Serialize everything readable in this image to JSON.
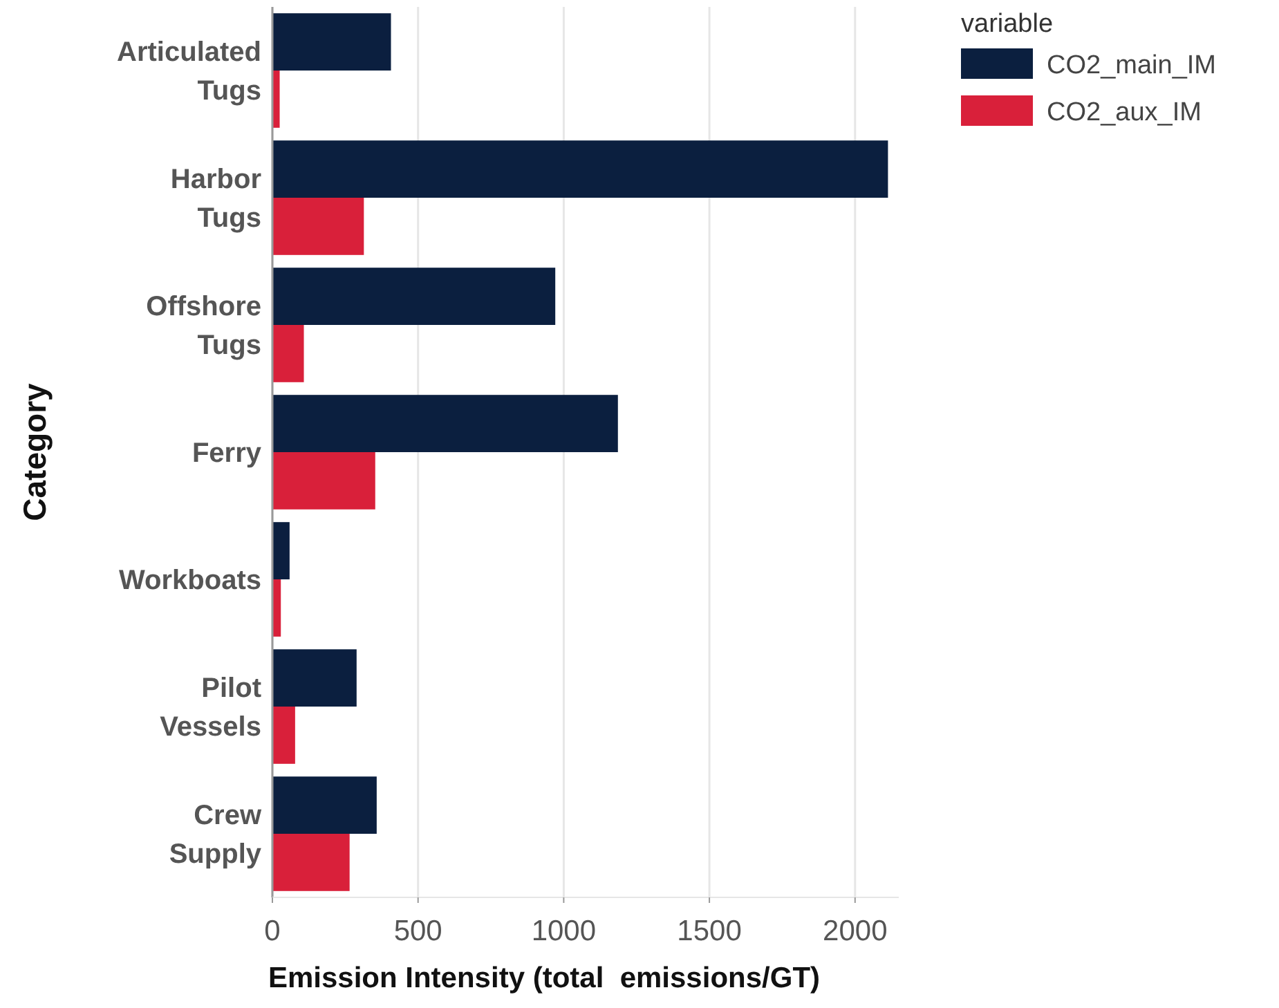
{
  "chart_data": {
    "type": "bar",
    "orientation": "horizontal",
    "xlabel": "Emission Intensity (total  emissions/GT)",
    "ylabel": "Category",
    "legend_title": "variable",
    "categories": [
      "Articulated Tugs",
      "Harbor Tugs",
      "Offshore Tugs",
      "Ferry",
      "Workboats",
      "Pilot Vessels",
      "Crew Supply"
    ],
    "series": [
      {
        "name": "CO2_main_IM",
        "color": "#0b1f3f",
        "values": [
          407,
          2113,
          971,
          1186,
          59,
          289,
          358
        ]
      },
      {
        "name": "CO2_aux_IM",
        "color": "#d9203a",
        "values": [
          25,
          314,
          108,
          353,
          29,
          78,
          265
        ]
      }
    ],
    "xlim": [
      0,
      2150
    ],
    "xticks": [
      0,
      500,
      1000,
      1500,
      2000
    ],
    "grid": "x",
    "legend": "top right"
  }
}
